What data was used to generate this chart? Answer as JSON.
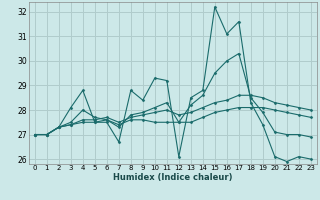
{
  "title": "",
  "xlabel": "Humidex (Indice chaleur)",
  "bg_color": "#cce8e8",
  "grid_color": "#b0cccc",
  "line_color": "#1a6b6b",
  "xlim": [
    -0.5,
    23.5
  ],
  "ylim": [
    25.8,
    32.4
  ],
  "yticks": [
    26,
    27,
    28,
    29,
    30,
    31,
    32
  ],
  "xticks": [
    0,
    1,
    2,
    3,
    4,
    5,
    6,
    7,
    8,
    9,
    10,
    11,
    12,
    13,
    14,
    15,
    16,
    17,
    18,
    19,
    20,
    21,
    22,
    23
  ],
  "series": [
    [
      27.0,
      27.0,
      27.3,
      28.1,
      28.8,
      27.5,
      27.5,
      26.7,
      28.8,
      28.4,
      29.3,
      29.2,
      26.1,
      28.5,
      28.8,
      32.2,
      31.1,
      31.6,
      28.3,
      27.4,
      26.1,
      25.9,
      26.1,
      26.0
    ],
    [
      27.0,
      27.0,
      27.3,
      27.4,
      27.5,
      27.5,
      27.6,
      27.4,
      27.6,
      27.6,
      27.5,
      27.5,
      27.5,
      27.5,
      27.7,
      27.9,
      28.0,
      28.1,
      28.1,
      28.1,
      28.0,
      27.9,
      27.8,
      27.7
    ],
    [
      27.0,
      27.0,
      27.3,
      27.4,
      27.6,
      27.6,
      27.7,
      27.5,
      27.7,
      27.8,
      27.9,
      28.0,
      27.8,
      27.9,
      28.1,
      28.3,
      28.4,
      28.6,
      28.6,
      28.5,
      28.3,
      28.2,
      28.1,
      28.0
    ],
    [
      27.0,
      27.0,
      27.3,
      27.5,
      28.0,
      27.7,
      27.6,
      27.3,
      27.8,
      27.9,
      28.1,
      28.3,
      27.5,
      28.2,
      28.6,
      29.5,
      30.0,
      30.3,
      28.5,
      27.9,
      27.1,
      27.0,
      27.0,
      26.9
    ]
  ]
}
